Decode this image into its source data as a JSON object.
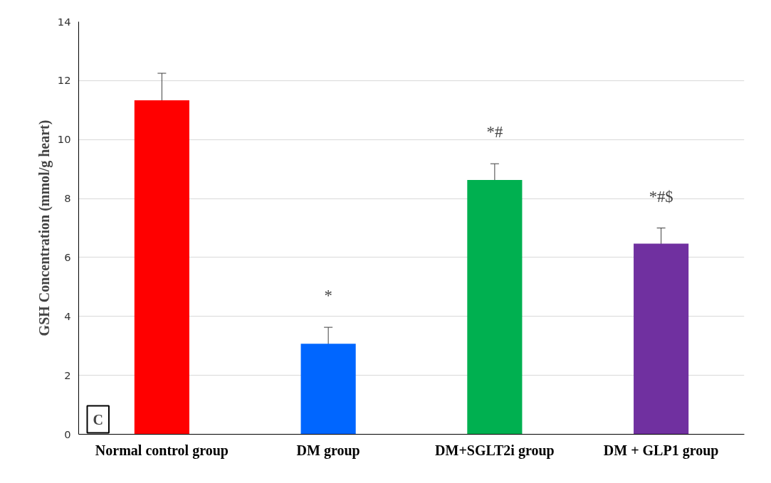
{
  "chart_data": {
    "type": "bar",
    "ylabel": "GSH Concentration (mmol/g heart)",
    "categories": [
      "Normal control group",
      "DM group",
      "DM+SGLT2i group",
      "DM + GLP1 group"
    ],
    "values": [
      11.33,
      3.07,
      8.63,
      6.47
    ],
    "colors": [
      "#ff0000",
      "#0066ff",
      "#00b050",
      "#7030a0"
    ],
    "errors": [
      0.92,
      0.56,
      0.55,
      0.53
    ],
    "ylim": [
      0,
      14
    ],
    "yticks": [
      0,
      2,
      4,
      6,
      8,
      10,
      12,
      14
    ],
    "grid": "y",
    "annotations": [
      {
        "text": "*",
        "x": "DM group",
        "y": 3.63
      },
      {
        "text": "*#",
        "x": "DM+SGLT2i group",
        "y": 9.18
      },
      {
        "text": "*#$",
        "x": "DM + GLP1 group",
        "y": 7.0
      },
      "C"
    ]
  }
}
